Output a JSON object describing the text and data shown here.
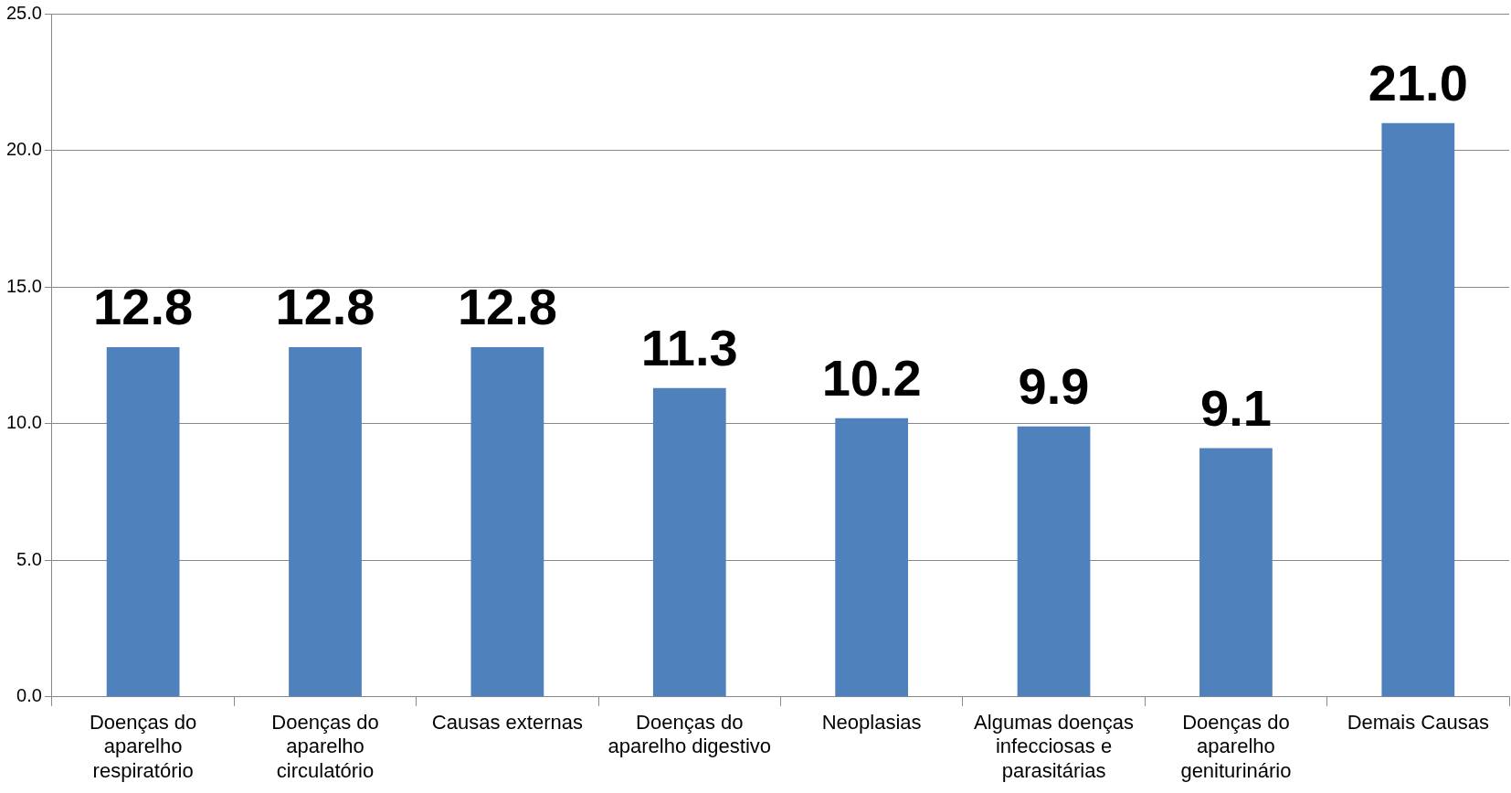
{
  "chart_data": {
    "type": "bar",
    "categories": [
      "Doenças do aparelho respiratório",
      "Doenças do aparelho circulatório",
      "Causas externas",
      "Doenças do aparelho digestivo",
      "Neoplasias",
      "Algumas doenças infecciosas e parasitárias",
      "Doenças do aparelho geniturinário",
      "Demais Causas"
    ],
    "values": [
      12.8,
      12.8,
      12.8,
      11.3,
      10.2,
      9.9,
      9.1,
      21.0
    ],
    "value_labels": [
      "12.8",
      "12.8",
      "12.8",
      "11.3",
      "10.2",
      "9.9",
      "9.1",
      "21.0"
    ],
    "color": "#4f81bd",
    "ylim": [
      0,
      25
    ],
    "yticks": [
      {
        "value": 0,
        "label": "0.0"
      },
      {
        "value": 5,
        "label": "5.0"
      },
      {
        "value": 10,
        "label": "10.0"
      },
      {
        "value": 15,
        "label": "15.0"
      },
      {
        "value": 20,
        "label": "20.0"
      },
      {
        "value": 25,
        "label": "25.0"
      }
    ],
    "grid": "y",
    "legend": false
  }
}
